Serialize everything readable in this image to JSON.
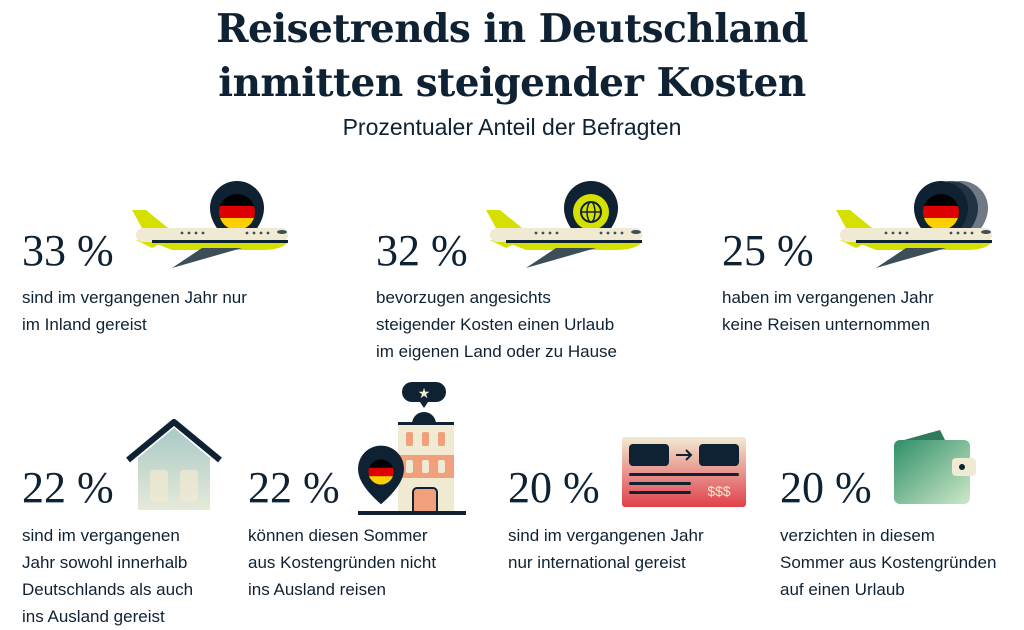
{
  "title_line1": "Reisetrends in Deutschland",
  "title_line2": "inmitten steigender Kosten",
  "subtitle": "Prozentualer Anteil der Befragten",
  "stats": [
    {
      "value": "33 %",
      "desc": [
        "sind im vergangenen Jahr nur",
        "im Inland gereist"
      ],
      "icon": "plane-germany-pin-icon"
    },
    {
      "value": "32 %",
      "desc": [
        "bevorzugen angesichts",
        "steigender Kosten einen Urlaub",
        "im eigenen Land oder zu Hause"
      ],
      "icon": "plane-globe-pin-icon"
    },
    {
      "value": "25 %",
      "desc": [
        "haben im vergangenen Jahr",
        "keine Reisen unternommen"
      ],
      "icon": "plane-germany-pins-icon"
    },
    {
      "value": "22 %",
      "desc": [
        "sind im vergangenen",
        "Jahr sowohl innerhalb",
        "Deutschlands als auch",
        "ins Ausland gereist"
      ],
      "icon": "house-icon"
    },
    {
      "value": "22 %",
      "desc": [
        "können diesen Sommer",
        "aus Kostengründen nicht",
        "ins Ausland reisen"
      ],
      "icon": "hotel-germany-pin-icon"
    },
    {
      "value": "20 %",
      "desc": [
        "sind im vergangenen Jahr",
        "nur international gereist"
      ],
      "icon": "ticket-icon"
    },
    {
      "value": "20 %",
      "desc": [
        "verzichten in diesem",
        "Sommer aus Kostengründen",
        "auf einen Urlaub"
      ],
      "icon": "wallet-icon"
    }
  ],
  "ticket_price": "$$$",
  "colors": {
    "navy": "#0f2233",
    "lime": "#d4e000",
    "cream": "#f1ead2",
    "salmon": "#f0a07a",
    "red": "#e0404a",
    "green": "#3a9a72"
  }
}
